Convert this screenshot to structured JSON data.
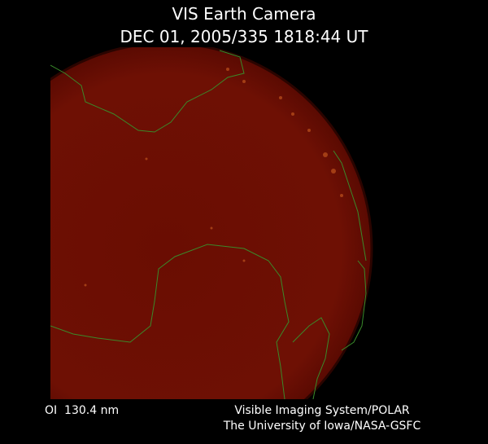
{
  "header": {
    "title": "VIS Earth Camera",
    "timestamp": "DEC 01, 2005/335 1818:44 UT"
  },
  "footer": {
    "wavelength": "OI  130.4 nm",
    "credit_line_1": "Visible Imaging System/POLAR",
    "credit_line_2": "The University of Iowa/NASA-GSFC"
  }
}
